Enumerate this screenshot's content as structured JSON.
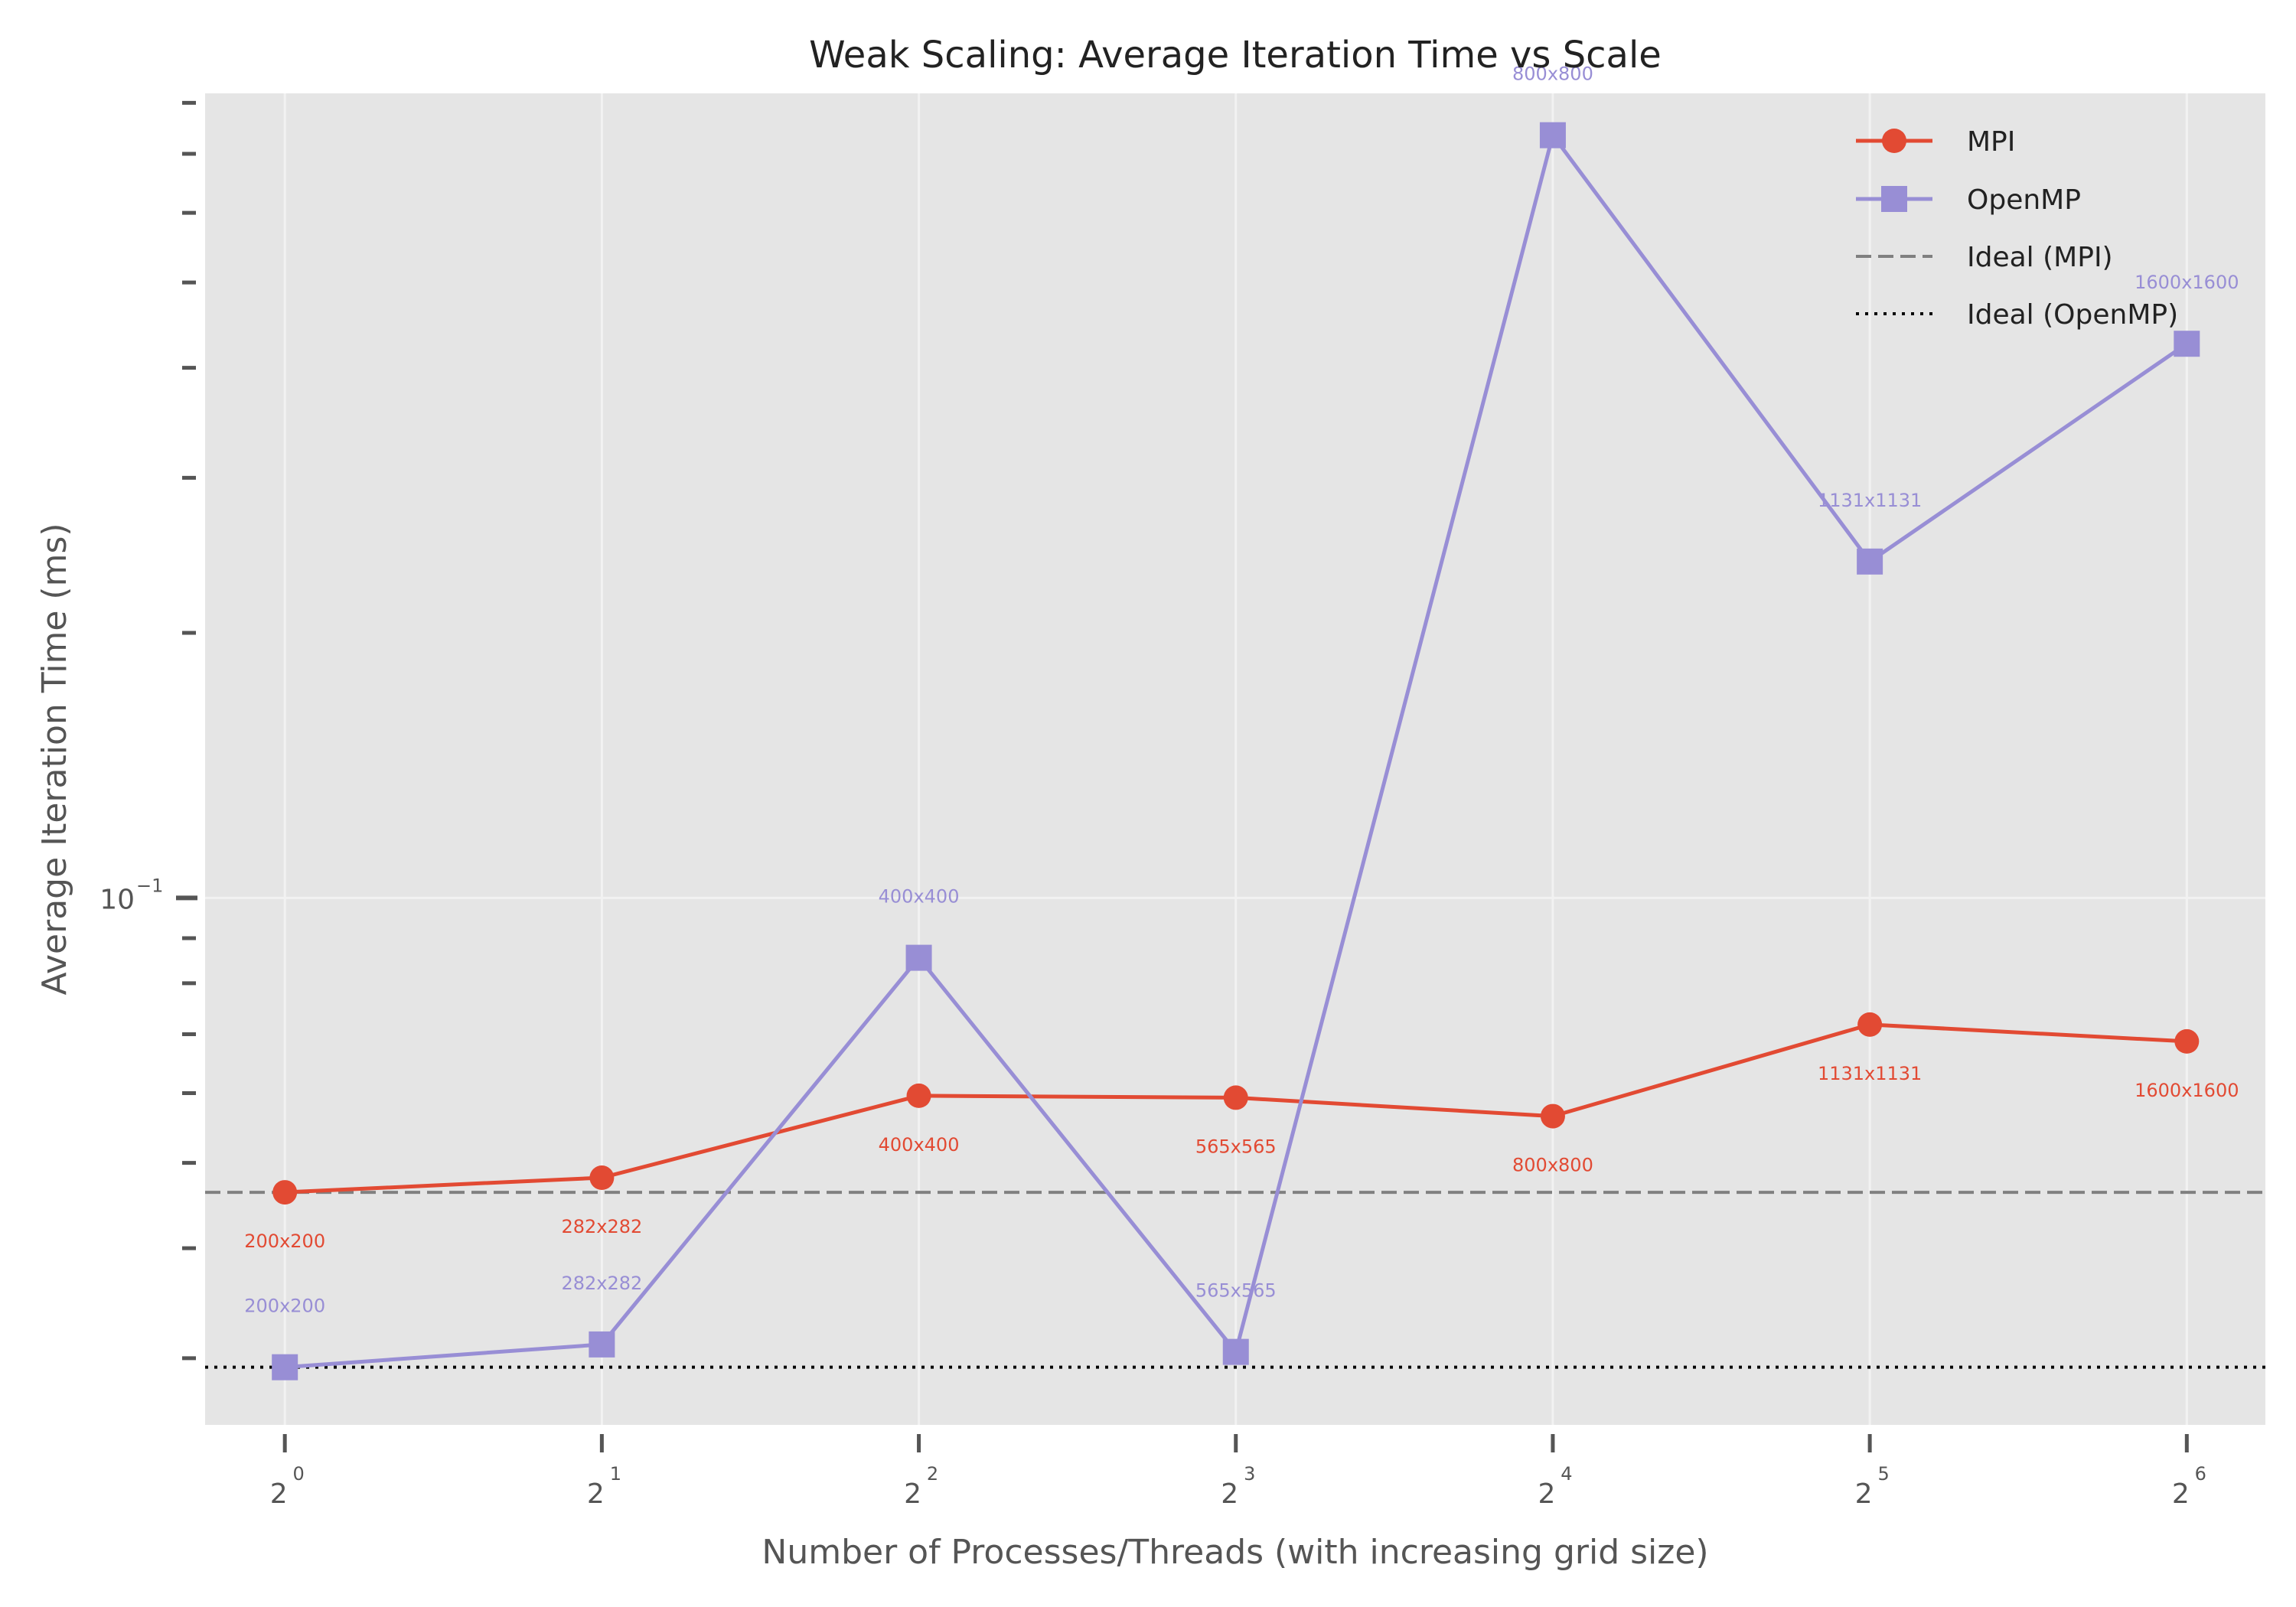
{
  "chart_data": {
    "type": "line",
    "title": "Weak Scaling: Average Iteration Time vs Scale",
    "xlabel": "Number of Processes/Threads (with increasing grid size)",
    "ylabel": "Average Iteration Time (ms)",
    "x_scale": "log2",
    "y_scale": "log10",
    "x": [
      1,
      2,
      4,
      8,
      16,
      32,
      64
    ],
    "x_tick_labels": [
      {
        "base": "2",
        "exp": "0"
      },
      {
        "base": "2",
        "exp": "1"
      },
      {
        "base": "2",
        "exp": "2"
      },
      {
        "base": "2",
        "exp": "3"
      },
      {
        "base": "2",
        "exp": "4"
      },
      {
        "base": "2",
        "exp": "5"
      },
      {
        "base": "2",
        "exp": "6"
      }
    ],
    "y_tick_label": {
      "base": "10",
      "exp": "−1",
      "value": 0.1
    },
    "xlim": [
      0.84,
      76
    ],
    "ylim": [
      0.0252,
      0.82
    ],
    "grid": true,
    "legend_position": "top-right",
    "colors": {
      "mpi": "#E24A33",
      "openmp": "#988ED5",
      "ideal_mpi": "#808080",
      "ideal_openmp": "#000000",
      "plot_bg": "#E5E5E5",
      "grid": "#F2F2F2"
    },
    "series": [
      {
        "name": "MPI",
        "marker": "circle",
        "values": [
          0.0463,
          0.0481,
          0.0596,
          0.0593,
          0.0565,
          0.0718,
          0.0687
        ],
        "labels": [
          "200x200",
          "282x282",
          "400x400",
          "565x565",
          "800x800",
          "1131x1131",
          "1600x1600"
        ]
      },
      {
        "name": "OpenMP",
        "marker": "square",
        "values": [
          0.0293,
          0.0311,
          0.0855,
          0.0305,
          0.735,
          0.241,
          0.426
        ],
        "labels": [
          "200x200",
          "282x282",
          "400x400",
          "565x565",
          "800x800",
          "1131x1131",
          "1600x1600"
        ]
      }
    ],
    "reference_lines": [
      {
        "name": "Ideal (MPI)",
        "value": 0.0463,
        "style": "dashed"
      },
      {
        "name": "Ideal (OpenMP)",
        "value": 0.0293,
        "style": "dotted"
      }
    ]
  }
}
